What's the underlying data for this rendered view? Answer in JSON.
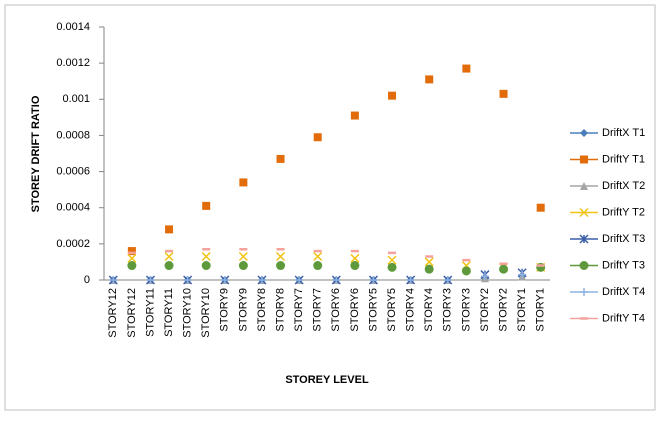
{
  "chart_data": {
    "type": "line",
    "y_label": "STOREY DRIFT RATIO",
    "x_label": "STOREY LEVEL",
    "categories": [
      "STORY12",
      "STORY12",
      "STORY11",
      "STORY11",
      "STORY10",
      "STORY10",
      "STORY9",
      "STORY9",
      "STORY8",
      "STORY8",
      "STORY7",
      "STORY7",
      "STORY6",
      "STORY6",
      "STORY5",
      "STORY5",
      "STORY4",
      "STORY4",
      "STORY3",
      "STORY3",
      "STORY2",
      "STORY2",
      "STORY1",
      "STORY1"
    ],
    "ylim": [
      0,
      0.0014
    ],
    "yticks": [
      0,
      0.0002,
      0.0004,
      0.0006,
      0.0008,
      0.001,
      0.0012,
      0.0014
    ],
    "legend": "right",
    "series": [
      {
        "name": "DriftX T1",
        "color": "#4a7ebb",
        "marker": "diamond",
        "values": [
          0,
          null,
          0,
          null,
          0,
          null,
          0,
          null,
          0,
          null,
          0,
          null,
          0,
          null,
          0,
          null,
          0,
          null,
          0,
          null,
          1e-05,
          null,
          2e-05,
          null
        ]
      },
      {
        "name": "DriftY T1",
        "color": "#e36c0a",
        "marker": "square",
        "values": [
          null,
          0.00016,
          null,
          0.00028,
          null,
          0.00041,
          null,
          0.00054,
          null,
          0.00067,
          null,
          0.00079,
          null,
          0.00091,
          null,
          0.00102,
          null,
          0.00111,
          null,
          0.00117,
          null,
          0.00103,
          null,
          0.0004
        ]
      },
      {
        "name": "DriftX T2",
        "color": "#a5a5a5",
        "marker": "triangle",
        "values": [
          0,
          null,
          0,
          null,
          0,
          null,
          0,
          null,
          0,
          null,
          0,
          null,
          0,
          null,
          0,
          null,
          0,
          null,
          0,
          null,
          1e-05,
          null,
          2e-05,
          null
        ]
      },
      {
        "name": "DriftY T2",
        "color": "#f2c314",
        "marker": "x",
        "values": [
          null,
          0.00012,
          null,
          0.00013,
          null,
          0.00013,
          null,
          0.00013,
          null,
          0.00013,
          null,
          0.00013,
          null,
          0.00012,
          null,
          0.00011,
          null,
          0.0001,
          null,
          8e-05,
          null,
          7e-05,
          null,
          7e-05
        ]
      },
      {
        "name": "DriftX T3",
        "color": "#3b5ea8",
        "marker": "star",
        "values": [
          0,
          null,
          0,
          null,
          0,
          null,
          0,
          null,
          0,
          null,
          0,
          null,
          0,
          null,
          0,
          null,
          0,
          null,
          0,
          null,
          3e-05,
          null,
          4e-05,
          null
        ]
      },
      {
        "name": "DriftY T3",
        "color": "#5e9a3c",
        "marker": "circle",
        "values": [
          null,
          8e-05,
          null,
          8e-05,
          null,
          8e-05,
          null,
          8e-05,
          null,
          8e-05,
          null,
          8e-05,
          null,
          8e-05,
          null,
          7e-05,
          null,
          6e-05,
          null,
          5e-05,
          null,
          6e-05,
          null,
          7e-05
        ]
      },
      {
        "name": "DriftX T4",
        "color": "#8db3e2",
        "marker": "plus",
        "values": [
          0,
          null,
          0,
          null,
          0,
          null,
          0,
          null,
          0,
          null,
          0,
          null,
          0,
          null,
          0,
          null,
          0,
          null,
          0,
          null,
          2e-05,
          null,
          3e-05,
          null
        ]
      },
      {
        "name": "DriftY T4",
        "color": "#f4a29a",
        "marker": "dash",
        "values": [
          null,
          0.00015,
          null,
          0.00016,
          null,
          0.00017,
          null,
          0.00017,
          null,
          0.00017,
          null,
          0.00016,
          null,
          0.00016,
          null,
          0.00015,
          null,
          0.00013,
          null,
          0.00011,
          null,
          9e-05,
          null,
          8e-05
        ]
      }
    ]
  }
}
